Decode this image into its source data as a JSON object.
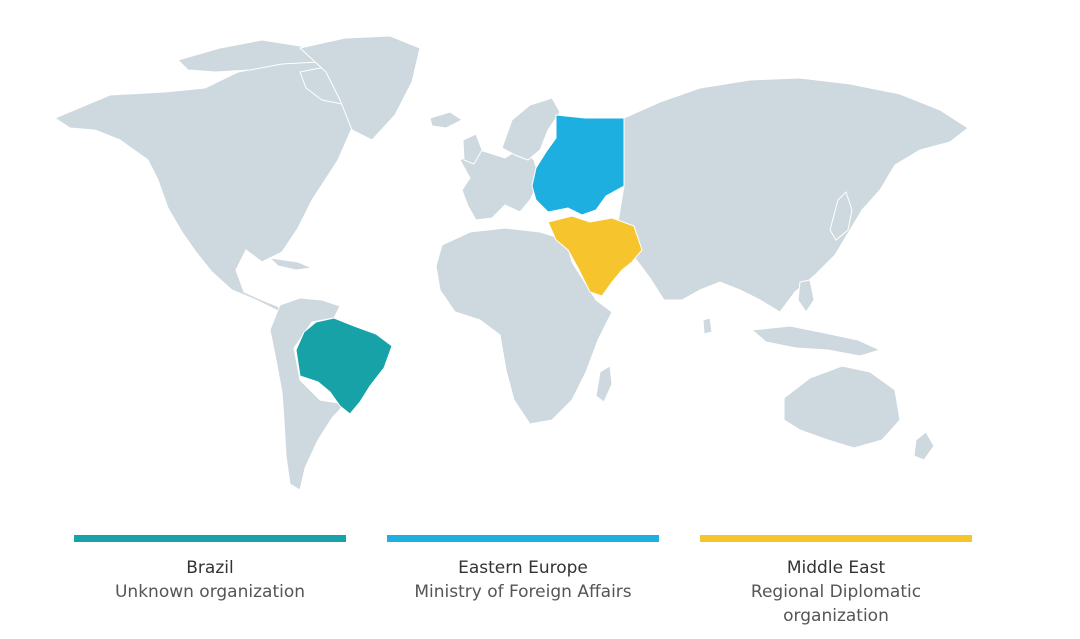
{
  "colors": {
    "land": "#cdd8df",
    "border": "#ffffff",
    "brazil": "#17a2a8",
    "eastern_europe": "#1cafe0",
    "middle_east": "#f6c52e"
  },
  "legend": [
    {
      "region": "Brazil",
      "organization": "Unknown organization",
      "color": "#17a2a8"
    },
    {
      "region": "Eastern Europe",
      "organization": "Ministry of Foreign Affairs",
      "color": "#1cafe0"
    },
    {
      "region": "Middle East",
      "organization": "Regional Diplomatic organization",
      "color": "#f6c52e"
    }
  ]
}
